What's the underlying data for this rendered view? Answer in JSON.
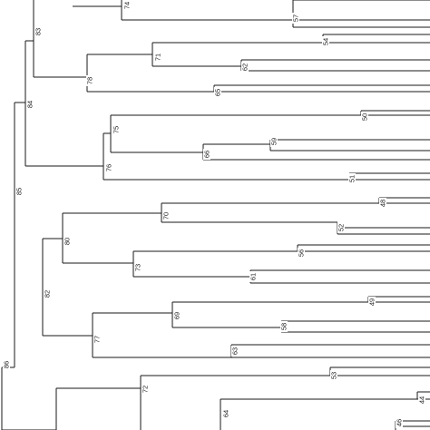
{
  "colors": {
    "line": "#1a1a1a",
    "label_text": "#222222",
    "background": "#ffffff"
  },
  "tree": {
    "leaf_count": 21,
    "node_labels": [
      "74",
      "57",
      "83",
      "71",
      "54",
      "62",
      "78",
      "65",
      "84",
      "50",
      "75",
      "59",
      "66",
      "76",
      "51",
      "85",
      "48",
      "70",
      "52",
      "80",
      "56",
      "73",
      "61",
      "82",
      "49",
      "69",
      "58",
      "77",
      "63",
      "86",
      "53",
      "72",
      "44",
      "64",
      "46"
    ]
  }
}
